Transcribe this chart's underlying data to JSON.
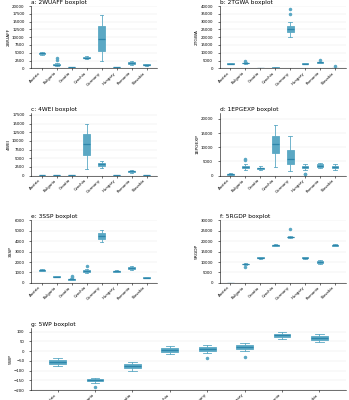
{
  "countries": [
    "Austria",
    "Bulgaria",
    "Croatia",
    "Czechia",
    "Germany",
    "Hungary",
    "Romania",
    "Slovakia"
  ],
  "plots": {
    "a": {
      "title": "a: 2WUAFF boxplot",
      "ylabel": "2WUAFF",
      "stats": [
        {
          "med": 4800,
          "q1": 4600,
          "q3": 4900,
          "whislo": 4400,
          "whishi": 5100,
          "fliers": []
        },
        {
          "med": 1200,
          "q1": 1000,
          "q3": 1400,
          "whislo": 800,
          "whishi": 1600,
          "fliers": [
            2800,
            3200
          ]
        },
        {
          "med": 350,
          "q1": 330,
          "q3": 370,
          "whislo": 300,
          "whishi": 400,
          "fliers": []
        },
        {
          "med": 3400,
          "q1": 3200,
          "q3": 3600,
          "whislo": 3000,
          "whishi": 3800,
          "fliers": []
        },
        {
          "med": 9500,
          "q1": 5500,
          "q3": 13500,
          "whislo": 2500,
          "whishi": 17000,
          "fliers": []
        },
        {
          "med": 480,
          "q1": 460,
          "q3": 500,
          "whislo": 430,
          "whishi": 530,
          "fliers": []
        },
        {
          "med": 1800,
          "q1": 1500,
          "q3": 2100,
          "whislo": 1200,
          "whishi": 2400,
          "fliers": []
        },
        {
          "med": 1100,
          "q1": 950,
          "q3": 1250,
          "whislo": 800,
          "whishi": 1400,
          "fliers": []
        }
      ],
      "ylim": [
        0,
        20000
      ]
    },
    "b": {
      "title": "b: 2TGWA boxplot",
      "ylabel": "2TGWA",
      "stats": [
        {
          "med": 3000,
          "q1": 2800,
          "q3": 3200,
          "whislo": 2600,
          "whishi": 3400,
          "fliers": []
        },
        {
          "med": 3500,
          "q1": 3300,
          "q3": 3700,
          "whislo": 3100,
          "whishi": 3900,
          "fliers": [
            5000
          ]
        },
        {
          "med": 200,
          "q1": 180,
          "q3": 220,
          "whislo": 150,
          "whishi": 250,
          "fliers": []
        },
        {
          "med": 500,
          "q1": 450,
          "q3": 550,
          "whislo": 400,
          "whishi": 600,
          "fliers": []
        },
        {
          "med": 25000,
          "q1": 23000,
          "q3": 27000,
          "whislo": 20000,
          "whishi": 30000,
          "fliers": [
            35000,
            38000
          ]
        },
        {
          "med": 3000,
          "q1": 2800,
          "q3": 3200,
          "whislo": 2600,
          "whishi": 3400,
          "fliers": []
        },
        {
          "med": 3800,
          "q1": 3600,
          "q3": 4000,
          "whislo": 3400,
          "whishi": 4200,
          "fliers": [
            5500
          ]
        },
        {
          "med": 300,
          "q1": 200,
          "q3": 400,
          "whislo": 100,
          "whishi": 500,
          "fliers": [
            1200
          ]
        }
      ],
      "ylim": [
        0,
        40000
      ]
    },
    "c": {
      "title": "c: 4WEI boxplot",
      "ylabel": "4WEI",
      "stats": [
        {
          "med": 250,
          "q1": 230,
          "q3": 270,
          "whislo": 200,
          "whishi": 300,
          "fliers": []
        },
        {
          "med": 200,
          "q1": 180,
          "q3": 220,
          "whislo": 150,
          "whishi": 250,
          "fliers": []
        },
        {
          "med": 180,
          "q1": 160,
          "q3": 200,
          "whislo": 130,
          "whishi": 230,
          "fliers": []
        },
        {
          "med": 9000,
          "q1": 6000,
          "q3": 12000,
          "whislo": 2000,
          "whishi": 15000,
          "fliers": []
        },
        {
          "med": 3200,
          "q1": 2800,
          "q3": 3600,
          "whislo": 2200,
          "whishi": 4200,
          "fliers": []
        },
        {
          "med": 180,
          "q1": 160,
          "q3": 200,
          "whislo": 130,
          "whishi": 230,
          "fliers": []
        },
        {
          "med": 1200,
          "q1": 1000,
          "q3": 1400,
          "whislo": 800,
          "whishi": 1600,
          "fliers": []
        },
        {
          "med": 250,
          "q1": 230,
          "q3": 270,
          "whislo": 200,
          "whishi": 300,
          "fliers": []
        }
      ],
      "ylim": [
        0,
        18000
      ]
    },
    "d": {
      "title": "d: 1EPGEXP boxplot",
      "ylabel": "1EPGEXP",
      "stats": [
        {
          "med": 400,
          "q1": 300,
          "q3": 600,
          "whislo": 200,
          "whishi": 800,
          "fliers": []
        },
        {
          "med": 3000,
          "q1": 2500,
          "q3": 3500,
          "whislo": 2000,
          "whishi": 4000,
          "fliers": [
            5500,
            6000
          ]
        },
        {
          "med": 2500,
          "q1": 2200,
          "q3": 2800,
          "whislo": 1900,
          "whishi": 3200,
          "fliers": []
        },
        {
          "med": 11000,
          "q1": 8000,
          "q3": 14000,
          "whislo": 3000,
          "whishi": 18000,
          "fliers": []
        },
        {
          "med": 6000,
          "q1": 4000,
          "q3": 9000,
          "whislo": 1500,
          "whishi": 14000,
          "fliers": []
        },
        {
          "med": 3000,
          "q1": 2500,
          "q3": 3500,
          "whislo": 2000,
          "whishi": 4000,
          "fliers": [
            500,
            700
          ]
        },
        {
          "med": 3500,
          "q1": 3000,
          "q3": 4000,
          "whislo": 2500,
          "whishi": 4500,
          "fliers": []
        },
        {
          "med": 3000,
          "q1": 2500,
          "q3": 3500,
          "whislo": 2000,
          "whishi": 4000,
          "fliers": []
        }
      ],
      "ylim": [
        0,
        22000
      ]
    },
    "e": {
      "title": "e: 3SSP boxplot",
      "ylabel": "3SSP",
      "stats": [
        {
          "med": 1200,
          "q1": 1150,
          "q3": 1250,
          "whislo": 1100,
          "whishi": 1300,
          "fliers": []
        },
        {
          "med": 600,
          "q1": 570,
          "q3": 630,
          "whislo": 530,
          "whishi": 660,
          "fliers": []
        },
        {
          "med": 350,
          "q1": 300,
          "q3": 380,
          "whislo": 250,
          "whishi": 420,
          "fliers": [
            600,
            700
          ]
        },
        {
          "med": 1100,
          "q1": 1000,
          "q3": 1200,
          "whislo": 900,
          "whishi": 1350,
          "fliers": [
            1600
          ]
        },
        {
          "med": 4500,
          "q1": 4200,
          "q3": 4800,
          "whislo": 3900,
          "whishi": 5100,
          "fliers": []
        },
        {
          "med": 1100,
          "q1": 1050,
          "q3": 1150,
          "whislo": 1000,
          "whishi": 1200,
          "fliers": []
        },
        {
          "med": 1400,
          "q1": 1300,
          "q3": 1500,
          "whislo": 1200,
          "whishi": 1600,
          "fliers": []
        },
        {
          "med": 500,
          "q1": 470,
          "q3": 530,
          "whislo": 430,
          "whishi": 560,
          "fliers": []
        }
      ],
      "ylim": [
        0,
        6000
      ]
    },
    "f": {
      "title": "f: 5RGDP boxplot",
      "ylabel": "5RGDP",
      "stats": [
        {
          "med": 0,
          "q1": 0,
          "q3": 0,
          "whislo": 0,
          "whishi": 0,
          "fliers": []
        },
        {
          "med": 9000,
          "q1": 8800,
          "q3": 9200,
          "whislo": 8500,
          "whishi": 9500,
          "fliers": [
            7500
          ]
        },
        {
          "med": 12000,
          "q1": 11800,
          "q3": 12200,
          "whislo": 11500,
          "whishi": 12500,
          "fliers": []
        },
        {
          "med": 18000,
          "q1": 17800,
          "q3": 18200,
          "whislo": 17500,
          "whishi": 18500,
          "fliers": []
        },
        {
          "med": 22000,
          "q1": 21800,
          "q3": 22200,
          "whislo": 21500,
          "whishi": 22500,
          "fliers": [
            26000
          ]
        },
        {
          "med": 12000,
          "q1": 11800,
          "q3": 12200,
          "whislo": 11500,
          "whishi": 12500,
          "fliers": []
        },
        {
          "med": 10000,
          "q1": 9600,
          "q3": 10400,
          "whislo": 9200,
          "whishi": 10800,
          "fliers": []
        },
        {
          "med": 18000,
          "q1": 17800,
          "q3": 18200,
          "whislo": 17500,
          "whishi": 18500,
          "fliers": []
        }
      ],
      "ylim": [
        0,
        30000
      ]
    },
    "g": {
      "title": "g: 5WP boxplot",
      "ylabel": "5WP",
      "stats": [
        {
          "med": -55,
          "q1": -65,
          "q3": -45,
          "whislo": -75,
          "whishi": -35,
          "fliers": []
        },
        {
          "med": -150,
          "q1": -155,
          "q3": -145,
          "whislo": -165,
          "whishi": -140,
          "fliers": [
            -185
          ]
        },
        {
          "med": -75,
          "q1": -85,
          "q3": -65,
          "whislo": -100,
          "whishi": -55,
          "fliers": []
        },
        {
          "med": 5,
          "q1": -5,
          "q3": 15,
          "whislo": -15,
          "whishi": 25,
          "fliers": []
        },
        {
          "med": 10,
          "q1": 0,
          "q3": 20,
          "whislo": -10,
          "whishi": 30,
          "fliers": [
            -35
          ]
        },
        {
          "med": 20,
          "q1": 10,
          "q3": 30,
          "whislo": 0,
          "whishi": 40,
          "fliers": [
            -30
          ]
        },
        {
          "med": 80,
          "q1": 70,
          "q3": 90,
          "whislo": 60,
          "whishi": 100,
          "fliers": []
        },
        {
          "med": 68,
          "q1": 58,
          "q3": 78,
          "whislo": 48,
          "whishi": 88,
          "fliers": []
        }
      ],
      "ylim": [
        -200,
        120
      ]
    }
  }
}
